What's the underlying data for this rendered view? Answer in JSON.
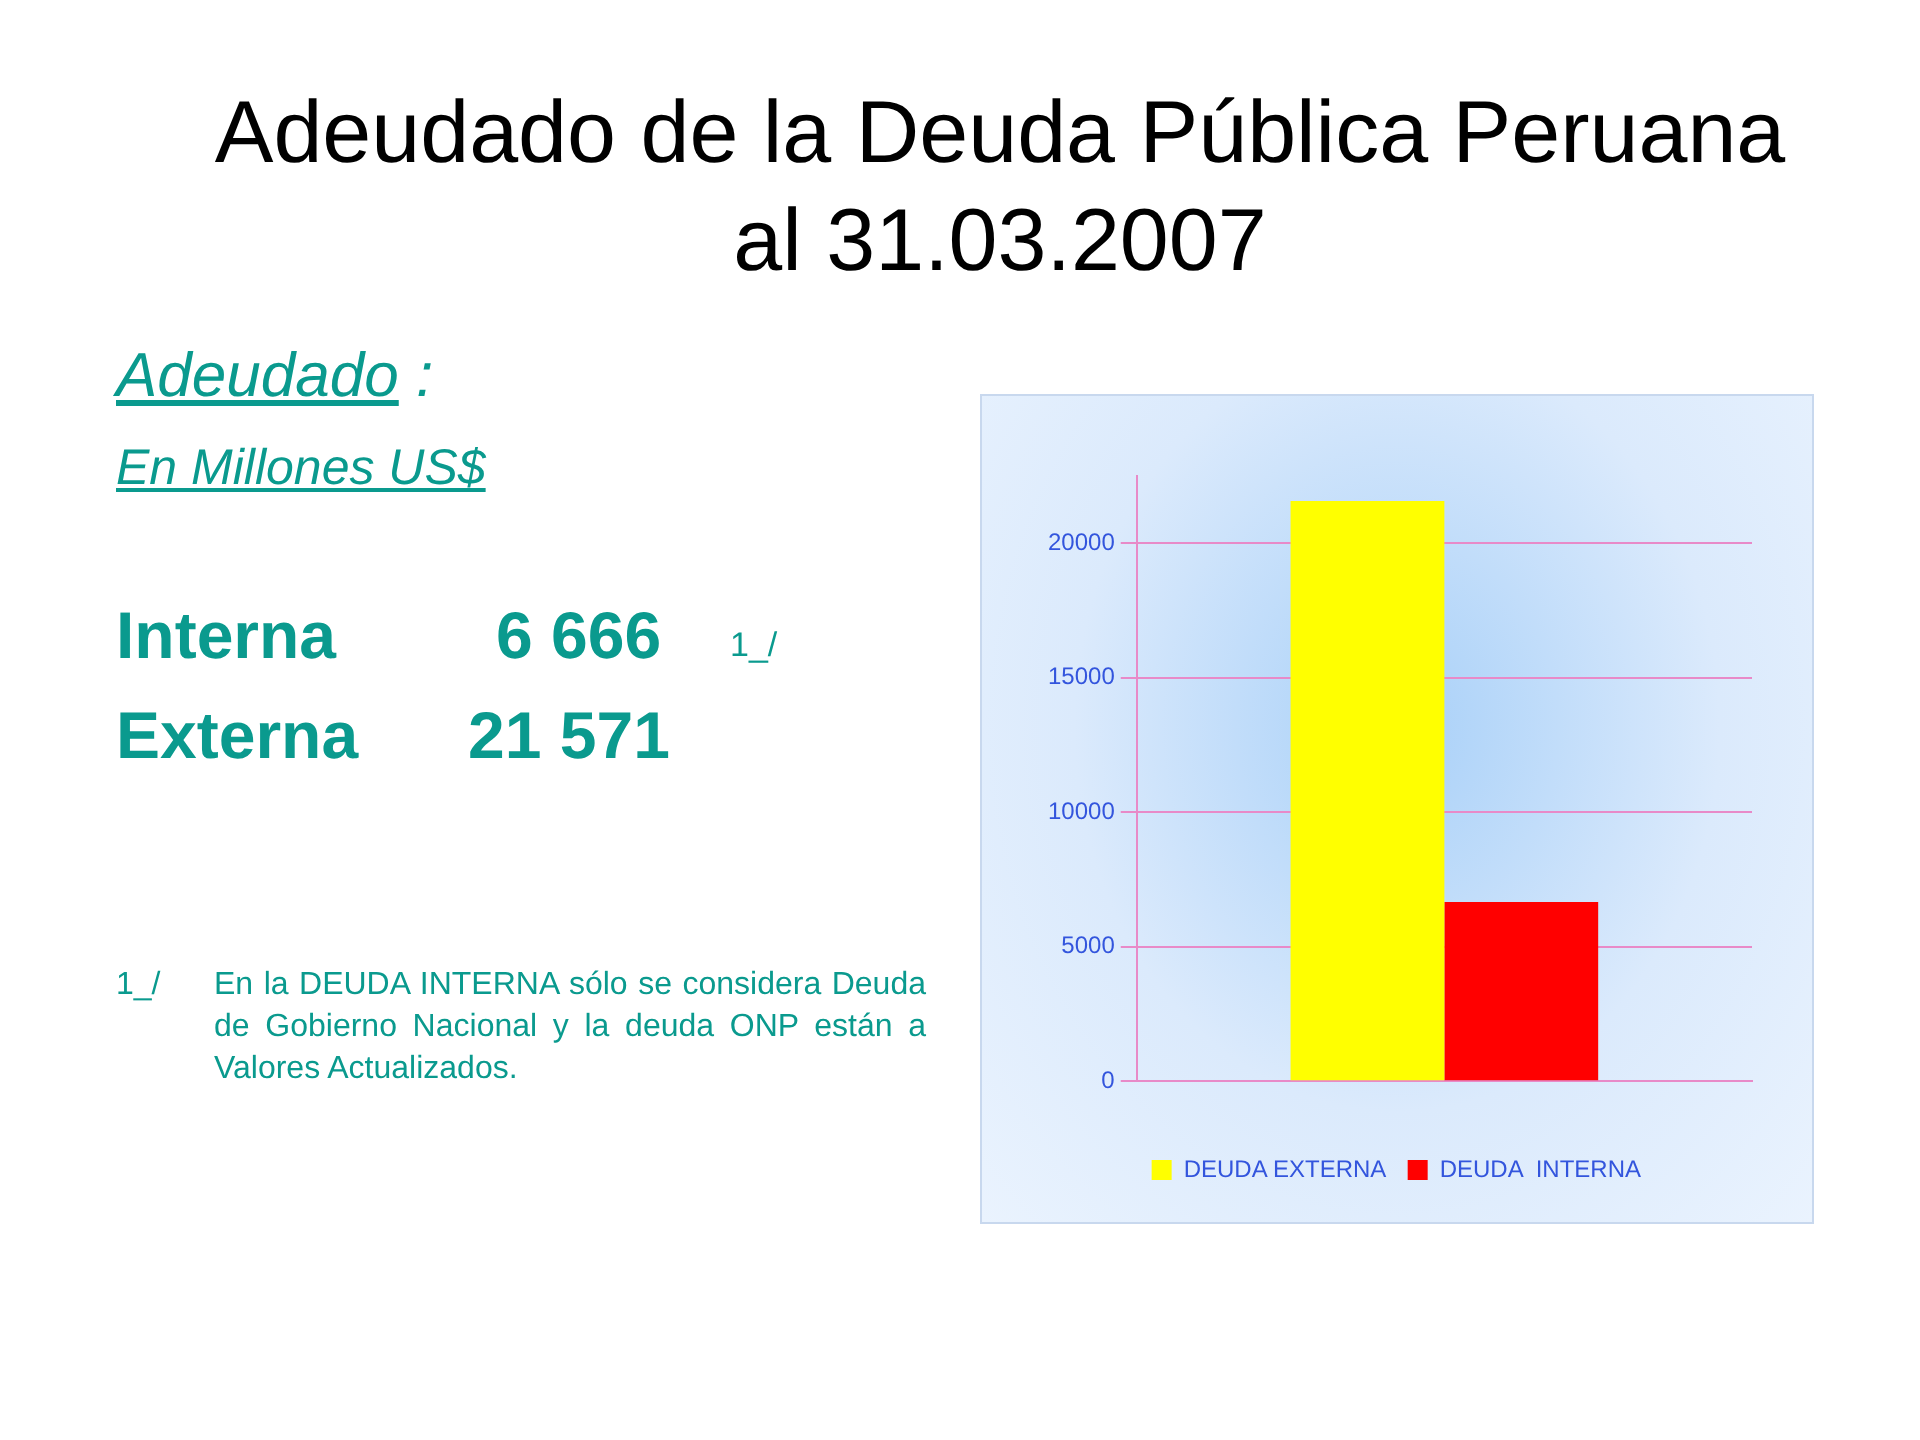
{
  "chart_data": {
    "type": "bar",
    "title": "Adeudado de la Deuda Pública Peruana al 31.03.2007",
    "categories": [
      null
    ],
    "series": [
      {
        "name": "DEUDA EXTERNA",
        "color": "#ffff00",
        "values": [
          21571
        ]
      },
      {
        "name": "DEUDA  INTERNA",
        "color": "#ff0000",
        "values": [
          6666
        ]
      }
    ],
    "ylim": [
      0,
      22500
    ],
    "yticks": [
      0,
      5000,
      10000,
      15000,
      20000
    ],
    "grid": "y",
    "legend": "bottom",
    "annotations": [
      "Adeudado",
      ":",
      "En Millones US$",
      "Interna",
      "6 666",
      "1_/",
      "Externa",
      "21 571",
      "1_/",
      "En la DEUDA INTERNA sólo se considera Deuda de Gobierno Nacional y la deuda ONP están a Valores Actualizados."
    ]
  }
}
